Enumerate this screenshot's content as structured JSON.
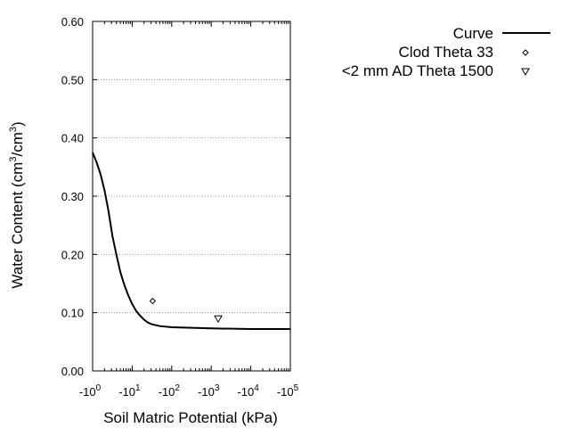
{
  "chart_data": {
    "type": "scatter",
    "xlabel": "Soil Matric Potential (kPa)",
    "ylabel": {
      "pre": "Water Content (cm",
      "sup1": "3",
      "mid": "/cm",
      "sup2": "3",
      "post": ")"
    },
    "x_scale": "log",
    "xlim": [
      1,
      100000
    ],
    "ylim": [
      0,
      0.6
    ],
    "x_ticks": [
      {
        "value": 1,
        "base": "-10",
        "exp": "0"
      },
      {
        "value": 10,
        "base": "-10",
        "exp": "1"
      },
      {
        "value": 100,
        "base": "-10",
        "exp": "2"
      },
      {
        "value": 1000,
        "base": "-10",
        "exp": "3"
      },
      {
        "value": 10000,
        "base": "-10",
        "exp": "4"
      },
      {
        "value": 100000,
        "base": "-10",
        "exp": "5"
      }
    ],
    "y_ticks": [
      {
        "value": 0.0,
        "label": "0.00"
      },
      {
        "value": 0.1,
        "label": "0.10"
      },
      {
        "value": 0.2,
        "label": "0.20"
      },
      {
        "value": 0.3,
        "label": "0.30"
      },
      {
        "value": 0.4,
        "label": "0.40"
      },
      {
        "value": 0.5,
        "label": "0.50"
      },
      {
        "value": 0.6,
        "label": "0.60"
      }
    ],
    "grid": "horizontal dotted",
    "legend_position": "top-right",
    "series": [
      {
        "name": "Curve",
        "kind": "line",
        "color": "#000000",
        "points": [
          [
            1,
            0.375
          ],
          [
            1.26,
            0.358
          ],
          [
            1.58,
            0.338
          ],
          [
            2,
            0.31
          ],
          [
            2.51,
            0.275
          ],
          [
            3.16,
            0.232
          ],
          [
            3.98,
            0.2
          ],
          [
            5.01,
            0.17
          ],
          [
            6.31,
            0.148
          ],
          [
            7.94,
            0.13
          ],
          [
            10,
            0.115
          ],
          [
            12.6,
            0.103
          ],
          [
            15.8,
            0.095
          ],
          [
            20,
            0.088
          ],
          [
            25.1,
            0.083
          ],
          [
            31.6,
            0.08
          ],
          [
            50,
            0.077
          ],
          [
            100,
            0.075
          ],
          [
            1000,
            0.073
          ],
          [
            10000,
            0.072
          ],
          [
            100000,
            0.072
          ]
        ]
      },
      {
        "name": "Clod Theta 33",
        "kind": "marker",
        "marker": "diamond",
        "points": [
          [
            33,
            0.12
          ]
        ]
      },
      {
        "name": "<2 mm AD Theta 1500",
        "kind": "marker",
        "marker": "triangle-down",
        "points": [
          [
            1500,
            0.09
          ]
        ]
      }
    ]
  }
}
